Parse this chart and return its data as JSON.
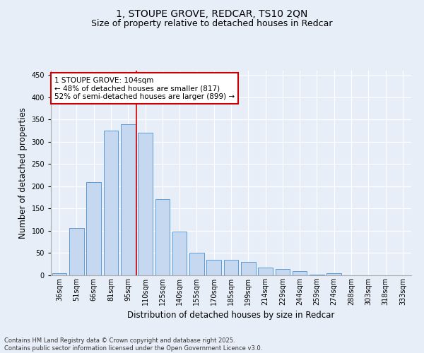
{
  "title1": "1, STOUPE GROVE, REDCAR, TS10 2QN",
  "title2": "Size of property relative to detached houses in Redcar",
  "xlabel": "Distribution of detached houses by size in Redcar",
  "ylabel": "Number of detached properties",
  "categories": [
    "36sqm",
    "51sqm",
    "66sqm",
    "81sqm",
    "95sqm",
    "110sqm",
    "125sqm",
    "140sqm",
    "155sqm",
    "170sqm",
    "185sqm",
    "199sqm",
    "214sqm",
    "229sqm",
    "244sqm",
    "259sqm",
    "274sqm",
    "288sqm",
    "303sqm",
    "318sqm",
    "333sqm"
  ],
  "values": [
    5,
    107,
    210,
    325,
    340,
    320,
    172,
    99,
    50,
    35,
    35,
    30,
    17,
    15,
    9,
    2,
    4,
    0,
    0,
    0,
    0
  ],
  "bar_color": "#c5d8f0",
  "bar_edge_color": "#5b9bd5",
  "vline_x": 4.5,
  "vline_color": "#cc0000",
  "annotation_line1": "1 STOUPE GROVE: 104sqm",
  "annotation_line2": "← 48% of detached houses are smaller (817)",
  "annotation_line3": "52% of semi-detached houses are larger (899) →",
  "annotation_box_color": "#ffffff",
  "annotation_box_edge": "#cc0000",
  "ylim": [
    0,
    460
  ],
  "yticks": [
    0,
    50,
    100,
    150,
    200,
    250,
    300,
    350,
    400,
    450
  ],
  "footer": "Contains HM Land Registry data © Crown copyright and database right 2025.\nContains public sector information licensed under the Open Government Licence v3.0.",
  "bg_color": "#e8eef8",
  "plot_bg_color": "#e8eef8",
  "title_fontsize": 10,
  "subtitle_fontsize": 9,
  "tick_fontsize": 7,
  "label_fontsize": 8.5,
  "annotation_fontsize": 7.5,
  "footer_fontsize": 6
}
